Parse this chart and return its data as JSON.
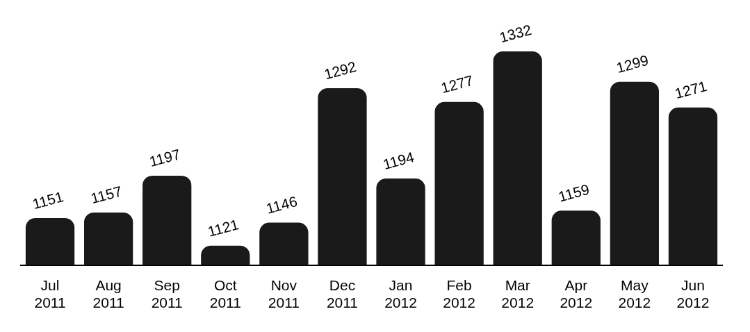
{
  "chart_data": {
    "type": "bar",
    "categories": [
      "Jul 2011",
      "Aug 2011",
      "Sep 2011",
      "Oct 2011",
      "Nov 2011",
      "Dec 2011",
      "Jan 2012",
      "Feb 2012",
      "Mar 2012",
      "Apr 2012",
      "May 2012",
      "Jun 2012"
    ],
    "values": [
      1151,
      1157,
      1197,
      1121,
      1146,
      1292,
      1194,
      1277,
      1332,
      1159,
      1299,
      1271
    ],
    "color": "#1a1a1a",
    "data_labels": true,
    "grid": false,
    "legend": false,
    "tick_labels": "x"
  }
}
